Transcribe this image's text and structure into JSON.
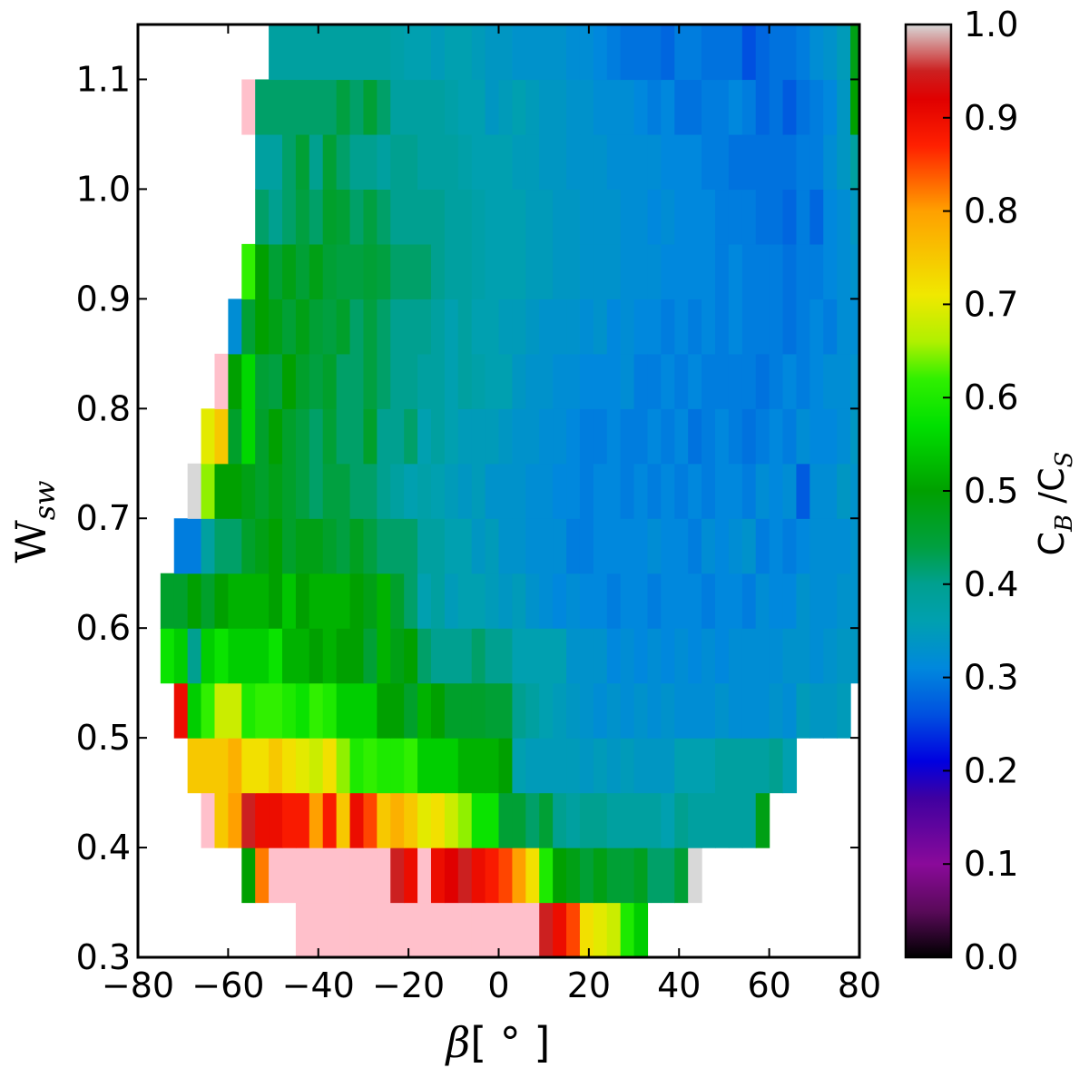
{
  "chart_data": {
    "type": "heatmap",
    "title": "",
    "xlabel": {
      "main": "β",
      "suffix": "[ ° ]"
    },
    "ylabel": {
      "main": "W",
      "sub": "sw"
    },
    "xlim": [
      -80,
      80
    ],
    "ylim": [
      0.3,
      1.15
    ],
    "xticks": [
      "−80",
      "−60",
      "−40",
      "−20",
      "0",
      "20",
      "40",
      "60",
      "80"
    ],
    "xtick_values": [
      -80,
      -60,
      -40,
      -20,
      0,
      20,
      40,
      60,
      80
    ],
    "yticks": [
      "0.3",
      "0.4",
      "0.5",
      "0.6",
      "0.7",
      "0.8",
      "0.9",
      "1.0",
      "1.1"
    ],
    "ytick_values": [
      0.3,
      0.4,
      0.5,
      0.6,
      0.7,
      0.8,
      0.9,
      1.0,
      1.1
    ],
    "cell_width_deg": 3,
    "row_height": 0.05,
    "over_value_color": "#ffc0cb",
    "rows": [
      {
        "y": 0.325,
        "x_start": -45,
        "values": [
          1.05,
          1.05,
          1.05,
          1.05,
          1.05,
          1.05,
          1.05,
          1.05,
          1.05,
          1.05,
          1.05,
          1.05,
          1.05,
          1.05,
          1.05,
          1.05,
          1.05,
          1.05,
          0.95,
          0.9,
          0.85,
          0.72,
          0.7,
          0.68,
          0.6,
          0.55
        ]
      },
      {
        "y": 0.375,
        "x_start": -57,
        "values": [
          0.5,
          0.82,
          1.05,
          1.05,
          1.05,
          1.05,
          1.05,
          1.05,
          1.05,
          1.05,
          1.05,
          0.95,
          0.9,
          1.05,
          0.9,
          0.92,
          0.95,
          0.9,
          0.88,
          0.85,
          0.8,
          0.72,
          0.6,
          0.5,
          0.48,
          0.45,
          0.48,
          0.45,
          0.45,
          0.47,
          0.42,
          0.42,
          0.45,
          1.0
        ]
      },
      {
        "y": 0.425,
        "x_start": -66,
        "values": [
          1.05,
          0.75,
          0.8,
          0.95,
          0.9,
          0.9,
          0.88,
          0.88,
          0.8,
          0.88,
          0.75,
          0.9,
          0.85,
          0.75,
          0.78,
          0.75,
          0.7,
          0.72,
          0.68,
          0.65,
          0.58,
          0.58,
          0.45,
          0.45,
          0.42,
          0.45,
          0.4,
          0.38,
          0.4,
          0.4,
          0.38,
          0.38,
          0.38,
          0.38,
          0.36,
          0.4,
          0.38,
          0.38,
          0.38,
          0.38,
          0.38,
          0.48
        ]
      },
      {
        "y": 0.475,
        "x_start": -69,
        "values": [
          0.75,
          0.75,
          0.75,
          0.78,
          0.72,
          0.72,
          0.75,
          0.72,
          0.7,
          0.68,
          0.72,
          0.65,
          0.6,
          0.62,
          0.6,
          0.6,
          0.62,
          0.55,
          0.55,
          0.55,
          0.52,
          0.52,
          0.52,
          0.5,
          0.36,
          0.35,
          0.35,
          0.35,
          0.35,
          0.34,
          0.35,
          0.34,
          0.35,
          0.34,
          0.34,
          0.34,
          0.36,
          0.36,
          0.36,
          0.38,
          0.38,
          0.38,
          0.38,
          0.4,
          0.36
        ]
      },
      {
        "y": 0.525,
        "x_start": -72,
        "values": [
          0.9,
          0.55,
          0.62,
          0.68,
          0.68,
          0.6,
          0.62,
          0.62,
          0.6,
          0.58,
          0.62,
          0.6,
          0.55,
          0.55,
          0.55,
          0.5,
          0.5,
          0.46,
          0.52,
          0.5,
          0.46,
          0.46,
          0.46,
          0.45,
          0.45,
          0.4,
          0.38,
          0.36,
          0.35,
          0.34,
          0.33,
          0.32,
          0.33,
          0.32,
          0.33,
          0.32,
          0.33,
          0.32,
          0.32,
          0.32,
          0.33,
          0.32,
          0.32,
          0.32,
          0.33,
          0.32,
          0.35,
          0.34,
          0.34,
          0.35
        ]
      },
      {
        "y": 0.575,
        "x_start": -75,
        "values": [
          0.58,
          0.55,
          0.4,
          0.55,
          0.58,
          0.55,
          0.55,
          0.55,
          0.58,
          0.52,
          0.52,
          0.5,
          0.52,
          0.5,
          0.5,
          0.45,
          0.52,
          0.48,
          0.5,
          0.42,
          0.4,
          0.4,
          0.4,
          0.42,
          0.4,
          0.4,
          0.36,
          0.36,
          0.36,
          0.36,
          0.33,
          0.33,
          0.33,
          0.31,
          0.32,
          0.31,
          0.32,
          0.31,
          0.32,
          0.31,
          0.32,
          0.31,
          0.32,
          0.32,
          0.32,
          0.32,
          0.33,
          0.33,
          0.32,
          0.33,
          0.34,
          0.34,
          0.34,
          0.58
        ]
      },
      {
        "y": 0.625,
        "x_start": -75,
        "values": [
          0.46,
          0.46,
          0.5,
          0.46,
          0.5,
          0.52,
          0.52,
          0.52,
          0.5,
          0.54,
          0.5,
          0.52,
          0.52,
          0.52,
          0.5,
          0.48,
          0.52,
          0.46,
          0.42,
          0.36,
          0.38,
          0.35,
          0.36,
          0.36,
          0.35,
          0.34,
          0.35,
          0.33,
          0.32,
          0.31,
          0.32,
          0.31,
          0.31,
          0.3,
          0.31,
          0.31,
          0.3,
          0.31,
          0.31,
          0.31,
          0.3,
          0.31,
          0.31,
          0.3,
          0.32,
          0.31,
          0.31,
          0.33,
          0.32,
          0.32,
          0.33,
          0.33,
          0.33,
          0.46,
          0.48
        ]
      },
      {
        "y": 0.675,
        "x_start": -72,
        "values": [
          0.3,
          0.3,
          0.38,
          0.42,
          0.42,
          0.46,
          0.48,
          0.5,
          0.46,
          0.48,
          0.48,
          0.46,
          0.44,
          0.47,
          0.44,
          0.42,
          0.42,
          0.42,
          0.38,
          0.38,
          0.36,
          0.36,
          0.34,
          0.35,
          0.33,
          0.33,
          0.32,
          0.32,
          0.32,
          0.3,
          0.3,
          0.31,
          0.31,
          0.31,
          0.31,
          0.32,
          0.31,
          0.31,
          0.3,
          0.32,
          0.31,
          0.32,
          0.33,
          0.3,
          0.31,
          0.3,
          0.31,
          0.32,
          0.32,
          0.32,
          0.33,
          0.34,
          0.55,
          0.6
        ]
      },
      {
        "y": 0.725,
        "x_start": -69,
        "values": [
          1.0,
          0.65,
          0.5,
          0.5,
          0.48,
          0.46,
          0.48,
          0.46,
          0.44,
          0.42,
          0.44,
          0.44,
          0.42,
          0.42,
          0.4,
          0.38,
          0.36,
          0.37,
          0.36,
          0.35,
          0.34,
          0.35,
          0.33,
          0.33,
          0.33,
          0.32,
          0.32,
          0.31,
          0.31,
          0.3,
          0.31,
          0.31,
          0.3,
          0.31,
          0.3,
          0.31,
          0.3,
          0.31,
          0.3,
          0.31,
          0.31,
          0.3,
          0.32,
          0.31,
          0.32,
          0.27,
          0.32,
          0.32,
          0.34,
          0.33,
          0.38,
          0.48,
          0.55,
          0.72,
          0.92
        ]
      },
      {
        "y": 0.775,
        "x_start": -66,
        "values": [
          0.7,
          0.75,
          0.46,
          0.56,
          0.46,
          0.5,
          0.46,
          0.44,
          0.42,
          0.45,
          0.42,
          0.42,
          0.46,
          0.4,
          0.4,
          0.42,
          0.36,
          0.38,
          0.36,
          0.35,
          0.35,
          0.35,
          0.34,
          0.33,
          0.33,
          0.32,
          0.32,
          0.31,
          0.3,
          0.3,
          0.31,
          0.3,
          0.3,
          0.31,
          0.3,
          0.31,
          0.29,
          0.3,
          0.31,
          0.3,
          0.29,
          0.3,
          0.31,
          0.3,
          0.32,
          0.31,
          0.31,
          0.32,
          0.34,
          0.48,
          0.5,
          0.6,
          0.7,
          0.8,
          0.62
        ]
      },
      {
        "y": 0.825,
        "x_start": -63,
        "values": [
          1.05,
          0.5,
          0.56,
          0.45,
          0.44,
          0.5,
          0.46,
          0.44,
          0.46,
          0.42,
          0.42,
          0.44,
          0.42,
          0.4,
          0.4,
          0.38,
          0.38,
          0.36,
          0.38,
          0.37,
          0.36,
          0.36,
          0.34,
          0.33,
          0.33,
          0.32,
          0.32,
          0.31,
          0.31,
          0.31,
          0.32,
          0.3,
          0.3,
          0.31,
          0.3,
          0.31,
          0.3,
          0.3,
          0.3,
          0.3,
          0.29,
          0.3,
          0.31,
          0.3,
          0.31,
          0.32,
          0.32,
          0.33,
          0.38,
          0.45,
          0.46,
          0.4,
          0.78,
          0.72
        ]
      },
      {
        "y": 0.875,
        "x_start": -60,
        "values": [
          0.32,
          0.45,
          0.5,
          0.48,
          0.45,
          0.48,
          0.45,
          0.44,
          0.46,
          0.42,
          0.44,
          0.42,
          0.4,
          0.4,
          0.4,
          0.38,
          0.36,
          0.38,
          0.36,
          0.36,
          0.35,
          0.35,
          0.34,
          0.33,
          0.33,
          0.33,
          0.32,
          0.33,
          0.31,
          0.32,
          0.31,
          0.31,
          0.3,
          0.31,
          0.3,
          0.31,
          0.3,
          0.31,
          0.3,
          0.3,
          0.3,
          0.29,
          0.3,
          0.31,
          0.3,
          0.32,
          0.32,
          0.34,
          0.36,
          0.45,
          0.5,
          0.52,
          0.9
        ]
      },
      {
        "y": 0.925,
        "x_start": -57,
        "values": [
          0.62,
          0.5,
          0.45,
          0.48,
          0.45,
          0.48,
          0.45,
          0.44,
          0.44,
          0.45,
          0.44,
          0.42,
          0.42,
          0.42,
          0.4,
          0.38,
          0.38,
          0.37,
          0.36,
          0.36,
          0.36,
          0.35,
          0.35,
          0.34,
          0.34,
          0.33,
          0.33,
          0.33,
          0.32,
          0.32,
          0.32,
          0.31,
          0.31,
          0.31,
          0.31,
          0.3,
          0.31,
          0.3,
          0.3,
          0.3,
          0.29,
          0.3,
          0.3,
          0.31,
          0.32,
          0.33,
          0.36,
          0.4,
          0.45,
          0.55
        ]
      },
      {
        "y": 0.975,
        "x_start": -54,
        "values": [
          0.42,
          0.4,
          0.42,
          0.44,
          0.42,
          0.46,
          0.45,
          0.42,
          0.44,
          0.42,
          0.4,
          0.4,
          0.4,
          0.4,
          0.38,
          0.38,
          0.37,
          0.36,
          0.36,
          0.36,
          0.35,
          0.35,
          0.34,
          0.34,
          0.33,
          0.33,
          0.33,
          0.32,
          0.32,
          0.31,
          0.32,
          0.31,
          0.31,
          0.31,
          0.3,
          0.3,
          0.3,
          0.29,
          0.29,
          0.28,
          0.3,
          0.28,
          0.31,
          0.32,
          0.34,
          0.48,
          0.5,
          1.05
        ]
      },
      {
        "y": 1.025,
        "x_start": -54,
        "values": [
          0.38,
          0.38,
          0.42,
          0.45,
          0.4,
          0.45,
          0.42,
          0.4,
          0.4,
          0.38,
          0.4,
          0.4,
          0.38,
          0.38,
          0.38,
          0.37,
          0.36,
          0.36,
          0.36,
          0.35,
          0.35,
          0.34,
          0.34,
          0.33,
          0.33,
          0.33,
          0.32,
          0.32,
          0.32,
          0.32,
          0.31,
          0.31,
          0.31,
          0.3,
          0.3,
          0.29,
          0.29,
          0.29,
          0.29,
          0.29,
          0.3,
          0.3,
          0.32,
          0.34,
          0.38,
          0.4,
          1.05
        ]
      },
      {
        "y": 1.075,
        "x_start": -57,
        "values": [
          1.05,
          0.42,
          0.42,
          0.42,
          0.42,
          0.42,
          0.42,
          0.44,
          0.42,
          0.45,
          0.42,
          0.38,
          0.38,
          0.38,
          0.38,
          0.37,
          0.36,
          0.36,
          0.34,
          0.35,
          0.36,
          0.35,
          0.34,
          0.34,
          0.33,
          0.33,
          0.32,
          0.32,
          0.32,
          0.31,
          0.3,
          0.31,
          0.29,
          0.29,
          0.3,
          0.3,
          0.31,
          0.3,
          0.28,
          0.29,
          0.27,
          0.29,
          0.3,
          0.31,
          0.34,
          0.5,
          0.6
        ]
      },
      {
        "y": 1.125,
        "x_start": -51,
        "values": [
          0.38,
          0.38,
          0.38,
          0.38,
          0.38,
          0.38,
          0.38,
          0.38,
          0.38,
          0.37,
          0.36,
          0.36,
          0.35,
          0.36,
          0.36,
          0.35,
          0.34,
          0.34,
          0.33,
          0.33,
          0.33,
          0.33,
          0.32,
          0.32,
          0.31,
          0.3,
          0.29,
          0.29,
          0.29,
          0.28,
          0.3,
          0.3,
          0.29,
          0.29,
          0.29,
          0.26,
          0.28,
          0.29,
          0.29,
          0.3,
          0.32,
          0.33,
          0.35,
          0.48
        ]
      }
    ],
    "colorbar": {
      "label": {
        "main": "C",
        "sub1": "B",
        "mid": " /C",
        "sub2": "S"
      },
      "range": [
        0.0,
        1.0
      ],
      "ticks": [
        "0.0",
        "0.1",
        "0.2",
        "0.3",
        "0.4",
        "0.5",
        "0.6",
        "0.7",
        "0.8",
        "0.9",
        "1.0"
      ],
      "tick_values": [
        0.0,
        0.1,
        0.2,
        0.3,
        0.4,
        0.5,
        0.6,
        0.7,
        0.8,
        0.9,
        1.0
      ],
      "stops": [
        {
          "v": 0.0,
          "c": "#000000"
        },
        {
          "v": 0.05,
          "c": "#5a0a5a"
        },
        {
          "v": 0.1,
          "c": "#8a0a9a"
        },
        {
          "v": 0.17,
          "c": "#4000a0"
        },
        {
          "v": 0.21,
          "c": "#0000e0"
        },
        {
          "v": 0.26,
          "c": "#0050e0"
        },
        {
          "v": 0.31,
          "c": "#0088dd"
        },
        {
          "v": 0.36,
          "c": "#00a0b0"
        },
        {
          "v": 0.4,
          "c": "#00a090"
        },
        {
          "v": 0.44,
          "c": "#00a040"
        },
        {
          "v": 0.5,
          "c": "#00a000"
        },
        {
          "v": 0.57,
          "c": "#00e000"
        },
        {
          "v": 0.62,
          "c": "#30f000"
        },
        {
          "v": 0.66,
          "c": "#b0f000"
        },
        {
          "v": 0.71,
          "c": "#f0e800"
        },
        {
          "v": 0.8,
          "c": "#ffa000"
        },
        {
          "v": 0.87,
          "c": "#ff2000"
        },
        {
          "v": 0.92,
          "c": "#e00000"
        },
        {
          "v": 0.95,
          "c": "#cc2020"
        },
        {
          "v": 1.0,
          "c": "#d8d8d8"
        }
      ]
    }
  }
}
